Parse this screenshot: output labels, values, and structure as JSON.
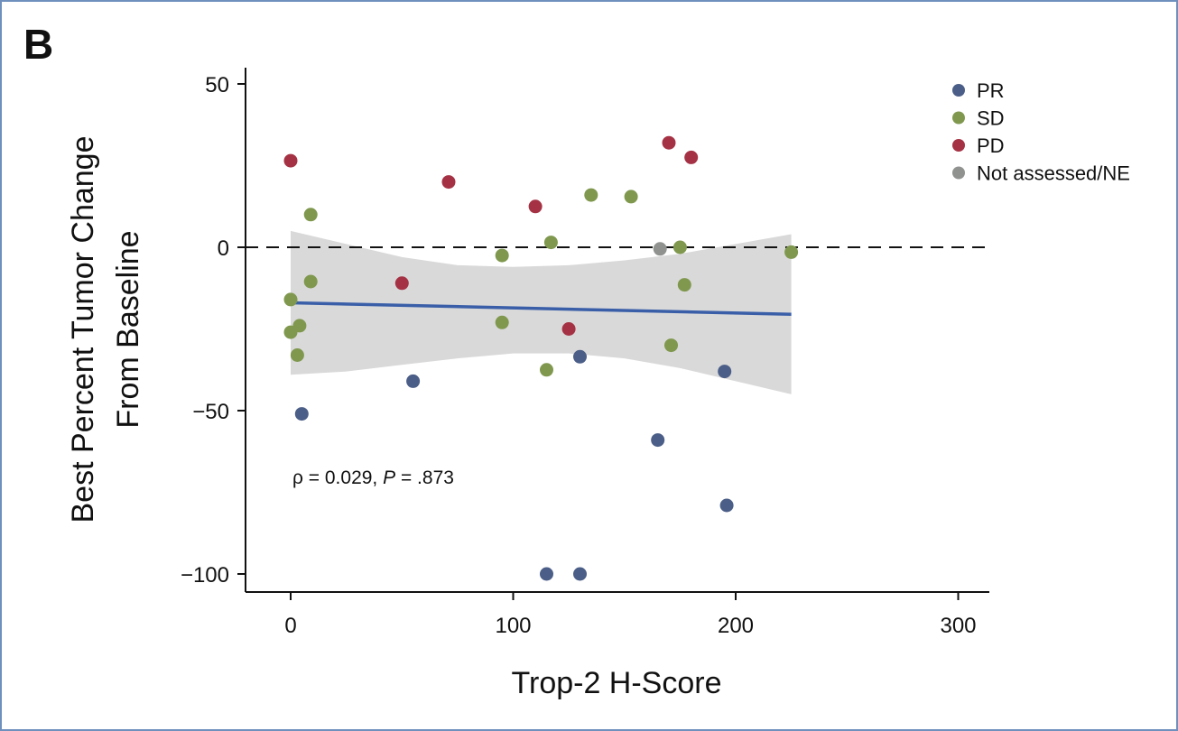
{
  "panel_label": "B",
  "chart_data": {
    "type": "scatter",
    "xlabel": "Trop-2 H-Score",
    "ylabel_lines": [
      "Best Percent Tumor Change",
      "From Baseline"
    ],
    "xlim": [
      -20,
      315
    ],
    "ylim": [
      -107,
      55
    ],
    "x_ticks": [
      0,
      100,
      200,
      300
    ],
    "x_tick_labels": [
      "0",
      "100",
      "200",
      "300"
    ],
    "y_ticks": [
      50,
      0,
      -50,
      -100
    ],
    "y_tick_labels": [
      "50",
      "0",
      "−50",
      "−100"
    ],
    "reference_line": {
      "y": 0,
      "style": "dashed"
    },
    "grid": false,
    "legend_position": "top-right",
    "annotation": {
      "rho_text": "ρ = 0.029, ",
      "p_symbol": "P",
      "p_text": " = .873"
    },
    "regression": {
      "x": [
        0,
        225
      ],
      "y": [
        -17,
        -20.5
      ],
      "color": "#3a5fa8"
    },
    "confidence_band": {
      "x": [
        0,
        25,
        50,
        75,
        100,
        125,
        150,
        175,
        200,
        225
      ],
      "upper": [
        5,
        1,
        -3,
        -5.5,
        -6,
        -5.5,
        -4,
        -2,
        1,
        4
      ],
      "lower": [
        -39,
        -38,
        -36,
        -34,
        -32.5,
        -32.5,
        -34,
        -37,
        -41,
        -45
      ]
    },
    "series": [
      {
        "name": "PR",
        "color": "#4b5e87",
        "points": [
          [
            5,
            -51
          ],
          [
            55,
            -41
          ],
          [
            115,
            -100
          ],
          [
            130,
            -100
          ],
          [
            130,
            -33.5
          ],
          [
            165,
            -59
          ],
          [
            195,
            -38
          ],
          [
            196,
            -79
          ]
        ]
      },
      {
        "name": "SD",
        "color": "#7f984e",
        "points": [
          [
            0,
            -16
          ],
          [
            0,
            -26
          ],
          [
            3,
            -33
          ],
          [
            4,
            -24
          ],
          [
            9,
            10
          ],
          [
            9,
            -10.5
          ],
          [
            95,
            -2.5
          ],
          [
            95,
            -23
          ],
          [
            115,
            -37.5
          ],
          [
            117,
            1.5
          ],
          [
            135,
            16
          ],
          [
            153,
            15.5
          ],
          [
            171,
            -30
          ],
          [
            175,
            0
          ],
          [
            177,
            -11.5
          ],
          [
            225,
            -1.5
          ]
        ]
      },
      {
        "name": "PD",
        "color": "#a53244",
        "points": [
          [
            0,
            26.5
          ],
          [
            50,
            -11
          ],
          [
            71,
            20
          ],
          [
            110,
            12.5
          ],
          [
            125,
            -25
          ],
          [
            170,
            32
          ],
          [
            180,
            27.5
          ]
        ]
      },
      {
        "name": "Not assessed/NE",
        "color": "#8f928f",
        "points": [
          [
            166,
            -0.5
          ]
        ]
      }
    ]
  }
}
